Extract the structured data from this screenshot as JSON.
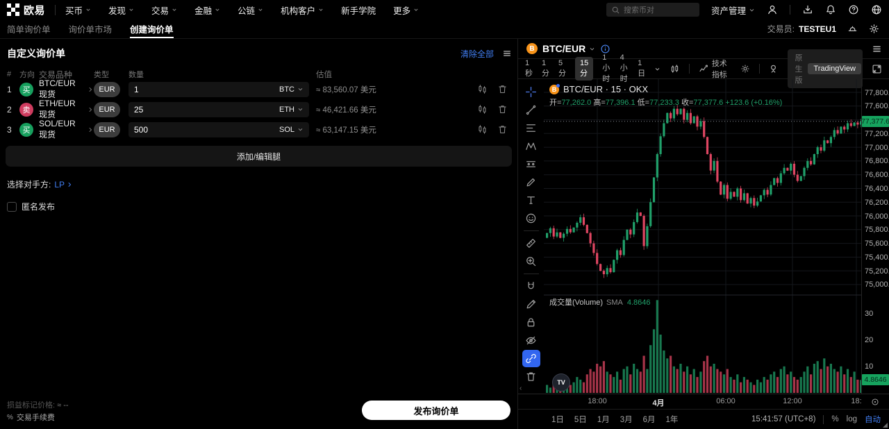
{
  "topnav": {
    "brand": "欧易",
    "menu": [
      "买币",
      "发现",
      "交易",
      "金融",
      "公链",
      "机构客户",
      "新手学院",
      "更多"
    ],
    "menu_slugs": [
      "buy-crypto",
      "discover",
      "trade",
      "finance",
      "chain",
      "institutional",
      "academy",
      "more"
    ],
    "menu_has_caret": [
      true,
      true,
      true,
      true,
      true,
      true,
      false,
      true
    ],
    "search_placeholder": "搜索币对",
    "assets_label": "资产管理",
    "right_icons": [
      "user-icon",
      "download-icon",
      "bell-icon",
      "help-icon",
      "globe-icon"
    ]
  },
  "subnav": {
    "tabs": [
      "简单询价单",
      "询价单市场",
      "创建询价单"
    ],
    "tab_slugs": [
      "simple-rfq",
      "rfq-market",
      "create-rfq"
    ],
    "active_index": 2,
    "trader_label": "交易员:",
    "trader_value": "TESTEU1",
    "right_icons": [
      "workspace-icon",
      "gear-icon"
    ]
  },
  "rfq": {
    "title": "自定义询价单",
    "clear_all": "清除全部",
    "columns": [
      "#",
      "方向",
      "交易品种",
      "类型",
      "数量",
      "估值"
    ],
    "rows": [
      {
        "index": "1",
        "side": "买",
        "side_type": "buy",
        "pair": "BTC/EUR 现货",
        "type": "EUR",
        "amount": "1",
        "unit": "BTC",
        "value": "≈ 83,560.07 美元"
      },
      {
        "index": "2",
        "side": "卖",
        "side_type": "sell",
        "pair": "ETH/EUR 现货",
        "type": "EUR",
        "amount": "25",
        "unit": "ETH",
        "value": "≈ 46,421.66 美元"
      },
      {
        "index": "3",
        "side": "买",
        "side_type": "buy",
        "pair": "SOL/EUR 现货",
        "type": "EUR",
        "amount": "500",
        "unit": "SOL",
        "value": "≈ 63,147.15 美元"
      }
    ],
    "add_button": "添加/编辑腿",
    "counterparty_label": "选择对手方:",
    "counterparty_value": "LP",
    "anonymous_label": "匿名发布",
    "pl_label": "损益标记价格:",
    "pl_value": "≈ --",
    "fee_pct": "%",
    "fee_label": "交易手续费",
    "publish_button": "发布询价单"
  },
  "chart": {
    "symbol": "BTC/EUR",
    "intervals": [
      "1秒",
      "1分",
      "5分",
      "15分",
      "1小时",
      "4小时",
      "1日"
    ],
    "active_interval": "15分",
    "indicators_label": "技术指标",
    "native_label": "原生版",
    "tradingview_label": "TradingView",
    "watermark": "TV",
    "legend_title": "BTC/EUR · 15 · OKX",
    "ohlc": {
      "open_label": "开=",
      "open": "77,262.0",
      "high_label": "高=",
      "high": "77,396.1",
      "low_label": "低=",
      "low": "77,233.3",
      "close_label": "收=",
      "close": "77,377.6",
      "change": "+123.6 (+0.16%)"
    },
    "volume_label": "成交量(Volume)",
    "volume_sma_label": "SMA",
    "volume_sma_value": "4.8646",
    "current_price_label": "77,377.6",
    "volume_tag": "4.8646",
    "time_axis": [
      "18:00",
      "4月",
      "06:00",
      "12:00",
      "18:"
    ],
    "ranges": [
      "1日",
      "5日",
      "1月",
      "3月",
      "6月",
      "1年"
    ],
    "clock": "15:41:57 (UTC+8)",
    "percent_label": "%",
    "log_label": "log",
    "auto_label": "自动",
    "tools": [
      {
        "name": "crosshair",
        "accent": true
      },
      {
        "name": "trend-line"
      },
      {
        "name": "fib-retracement"
      },
      {
        "name": "xabcd-pattern"
      },
      {
        "name": "position-tool"
      },
      {
        "name": "brush"
      },
      {
        "name": "text-tool"
      },
      {
        "name": "emoji"
      },
      {
        "divider": true
      },
      {
        "name": "ruler"
      },
      {
        "name": "zoom-in"
      },
      {
        "divider": true
      },
      {
        "name": "magnet"
      },
      {
        "name": "pencil"
      },
      {
        "name": "lock"
      },
      {
        "name": "eye-off"
      },
      {
        "name": "link",
        "active": true
      },
      {
        "name": "trash"
      }
    ],
    "chart_data": {
      "type": "candlestick+volume",
      "symbol": "BTC/EUR",
      "interval": "15",
      "exchange": "OKX",
      "up_color": "#20a06a",
      "down_color": "#df4662",
      "price_ticks": [
        77800,
        77600,
        77400,
        77200,
        77000,
        76800,
        76600,
        76400,
        76200,
        76000,
        75800,
        75600,
        75400,
        75200,
        75000
      ],
      "volume_ticks": [
        30,
        20,
        10
      ],
      "current_price": 77377.6,
      "volume_sma": 4.8646,
      "closes": [
        75750,
        75820,
        75700,
        75760,
        75680,
        75740,
        75810,
        75760,
        75830,
        75900,
        75980,
        75870,
        75750,
        75600,
        75460,
        75300,
        75200,
        75150,
        75240,
        75180,
        75360,
        75500,
        75430,
        75650,
        75800,
        75730,
        75910,
        76050,
        76000,
        75560,
        75850,
        76200,
        76560,
        76900,
        77160,
        77350,
        77500,
        77420,
        77560,
        77480,
        77560,
        77400,
        77500,
        77350,
        77450,
        77300,
        77380,
        77150,
        76900,
        76660,
        76800,
        76500,
        76310,
        76450,
        76250,
        76350,
        76280,
        76400,
        76230,
        76330,
        76180,
        76260,
        76150,
        76210,
        76300,
        76380,
        76310,
        76450,
        76550,
        76480,
        76620,
        76700,
        76660,
        76760,
        76600,
        76510,
        76580,
        76700,
        76800,
        76750,
        76900,
        77000,
        76950,
        77100,
        77060,
        77150,
        77250,
        77200,
        77300,
        77260,
        77350,
        77310,
        77360,
        77330,
        77377.6
      ],
      "volumes": [
        3,
        2,
        4,
        3,
        2,
        3,
        5,
        3,
        4,
        6,
        5,
        4,
        7,
        9,
        8,
        11,
        10,
        12,
        8,
        7,
        6,
        8,
        5,
        9,
        10,
        7,
        11,
        9,
        8,
        14,
        9,
        18,
        24,
        35,
        22,
        16,
        13,
        14,
        10,
        9,
        11,
        8,
        10,
        7,
        9,
        6,
        8,
        12,
        14,
        10,
        11,
        9,
        8,
        7,
        9,
        6,
        5,
        7,
        4,
        6,
        5,
        4,
        3,
        5,
        4,
        6,
        5,
        7,
        8,
        6,
        9,
        10,
        7,
        8,
        6,
        5,
        6,
        8,
        10,
        7,
        11,
        12,
        9,
        13,
        10,
        11,
        9,
        8,
        10,
        7,
        9,
        6,
        8,
        5,
        4.86
      ]
    }
  }
}
